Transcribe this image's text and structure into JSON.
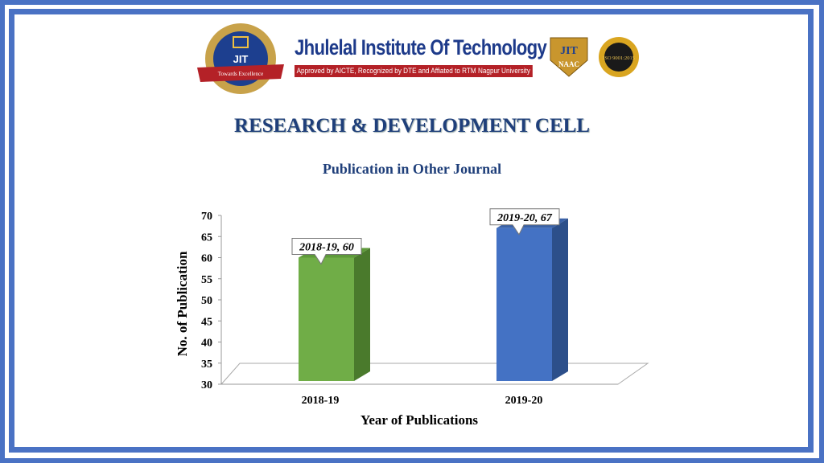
{
  "header": {
    "institute": "Jhulelal Institute Of Technology",
    "tagline": "Approved by AICTE, Recognized by DTE and Affiated to RTM Nagpur University",
    "logo_text": "JIT",
    "logo_ribbon": "Towards Excellence",
    "logo_city": "NAGPUR",
    "naac_badge": "JIT NAAC",
    "iso_badge": "ISO 9001:2015"
  },
  "title": "RESEARCH & DEVELOPMENT CELL",
  "colors": {
    "frame": "#4a72c4",
    "bar1": "#70ad47",
    "bar2": "#4472c4"
  },
  "chart_data": {
    "type": "bar",
    "title": "Publication in Other Journal",
    "categories": [
      "2018-19",
      "2019-20"
    ],
    "values": [
      60,
      67
    ],
    "data_labels": [
      "2018-19, 60",
      "2019-20, 67"
    ],
    "xlabel": "Year of Publications",
    "ylabel": "No. of Publication",
    "ylim": [
      30,
      70
    ],
    "yticks": [
      "30",
      "35",
      "40",
      "45",
      "50",
      "55",
      "60",
      "65",
      "70"
    ],
    "grid": false
  }
}
